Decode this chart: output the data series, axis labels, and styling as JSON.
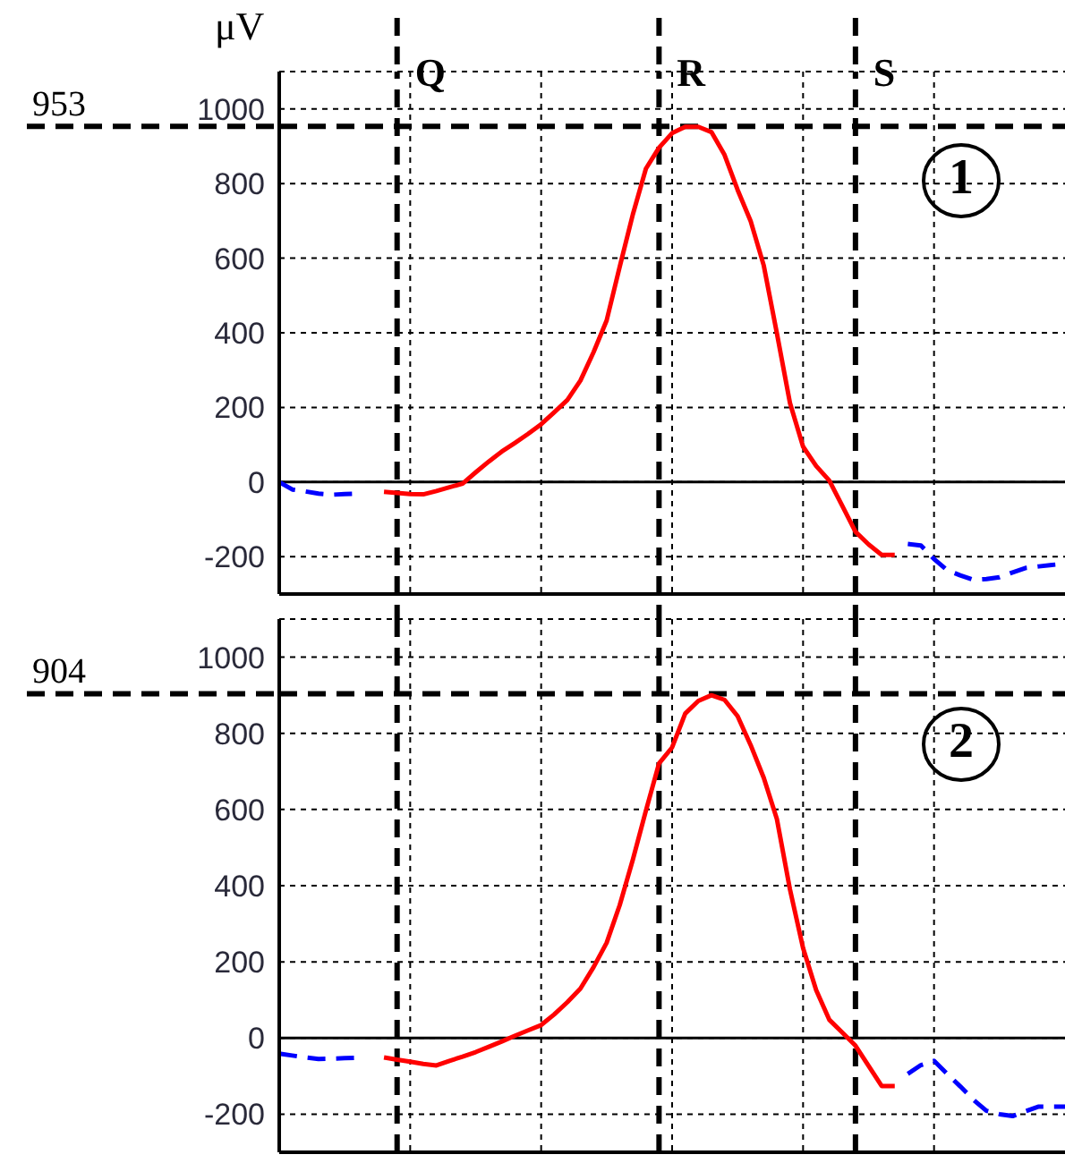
{
  "chart_data": [
    {
      "type": "line",
      "ylabel": "μV",
      "annotations": [
        "Q",
        "R",
        "S",
        "1"
      ],
      "categories": [
        null,
        null,
        null,
        null,
        null,
        null,
        null,
        null,
        null,
        null,
        null,
        null,
        null,
        null,
        null,
        null,
        null,
        null,
        null,
        null,
        null,
        null,
        null,
        null,
        null,
        null,
        null,
        null,
        null,
        null,
        null,
        null,
        null,
        null,
        null,
        null,
        null,
        null,
        null,
        null,
        null,
        null,
        null,
        null,
        null,
        null,
        null,
        null,
        null,
        null,
        null,
        null,
        null,
        null,
        null,
        null,
        null,
        null,
        null,
        null,
        null
      ],
      "ylim": [
        -300,
        1100
      ],
      "yticks": [
        -200,
        0,
        200,
        400,
        600,
        800,
        1000
      ],
      "tick_labels": "y",
      "grid": true,
      "series": [
        {
          "color": "#0000ff",
          "line_style": "dashed",
          "values": [
            0,
            -20,
            -25,
            -31,
            -34,
            -32,
            -31,
            null,
            null,
            null,
            null,
            null,
            null,
            null,
            null,
            null,
            null,
            null,
            null,
            null,
            null,
            null,
            null,
            null,
            null,
            null,
            null,
            null,
            null,
            null,
            null,
            null,
            null,
            null,
            null,
            null,
            null,
            null,
            null,
            null,
            null,
            null,
            null,
            null,
            null,
            null,
            null,
            null,
            null,
            null,
            null,
            null,
            null,
            null,
            null,
            null,
            null,
            null,
            null,
            null,
            null
          ]
        },
        {
          "color": "#ff0000",
          "line_style": "solid",
          "values": [
            null,
            null,
            null,
            null,
            null,
            null,
            null,
            null,
            -26,
            -29,
            -32,
            -33,
            -24,
            -14,
            -4,
            26,
            55,
            82,
            105,
            129,
            155,
            187,
            220,
            272,
            348,
            433,
            577,
            717,
            840,
            896,
            935,
            952,
            952,
            938,
            877,
            783,
            699,
            580,
            399,
            212,
            95,
            43,
            4,
            -64,
            -133,
            -167,
            -195,
            -195,
            null,
            null,
            null,
            null,
            null,
            null,
            null,
            null,
            null,
            null,
            null,
            null,
            null
          ]
        },
        {
          "color": "#0000ff",
          "line_style": "dashed",
          "values": [
            null,
            null,
            null,
            null,
            null,
            null,
            null,
            null,
            null,
            null,
            null,
            null,
            null,
            null,
            null,
            null,
            null,
            null,
            null,
            null,
            null,
            null,
            null,
            null,
            null,
            null,
            null,
            null,
            null,
            null,
            null,
            null,
            null,
            null,
            null,
            null,
            null,
            null,
            null,
            null,
            null,
            null,
            null,
            null,
            null,
            null,
            null,
            null,
            -166,
            -170,
            -206,
            -236,
            -250,
            -262,
            -260,
            -255,
            -242,
            -230,
            -226,
            -222,
            -219
          ]
        }
      ],
      "ref_lines": [
        {
          "axis": "y",
          "value": 0,
          "color": "#000000",
          "line_style": "solid"
        },
        {
          "axis": "y",
          "value": 953,
          "label": "953",
          "color": "#000000",
          "line_style": "dashed"
        }
      ]
    },
    {
      "type": "line",
      "annotations": [
        "2"
      ],
      "categories": [
        null,
        null,
        null,
        null,
        null,
        null,
        null,
        null,
        null,
        null,
        null,
        null,
        null,
        null,
        null,
        null,
        null,
        null,
        null,
        null,
        null,
        null,
        null,
        null,
        null,
        null,
        null,
        null,
        null,
        null,
        null,
        null,
        null,
        null,
        null,
        null,
        null,
        null,
        null,
        null,
        null,
        null,
        null,
        null,
        null,
        null,
        null,
        null,
        null,
        null,
        null,
        null,
        null,
        null,
        null,
        null,
        null,
        null,
        null,
        null,
        null
      ],
      "ylim": [
        -300,
        1100
      ],
      "yticks": [
        -200,
        0,
        200,
        400,
        600,
        800,
        1000
      ],
      "tick_labels": "y",
      "grid": true,
      "series": [
        {
          "color": "#0000ff",
          "line_style": "dashed",
          "values": [
            -41,
            -46,
            -51,
            -55,
            -54,
            -53,
            -52,
            null,
            null,
            null,
            null,
            null,
            null,
            null,
            null,
            null,
            null,
            null,
            null,
            null,
            null,
            null,
            null,
            null,
            null,
            null,
            null,
            null,
            null,
            null,
            null,
            null,
            null,
            null,
            null,
            null,
            null,
            null,
            null,
            null,
            null,
            null,
            null,
            null,
            null,
            null,
            null,
            null,
            null,
            null,
            null,
            null,
            null,
            null,
            null,
            null,
            null,
            null,
            null,
            null,
            null
          ]
        },
        {
          "color": "#ff0000",
          "line_style": "solid",
          "values": [
            null,
            null,
            null,
            null,
            null,
            null,
            null,
            null,
            -51,
            -57,
            -62,
            -68,
            -72,
            -60,
            -49,
            -37,
            -23,
            -9,
            6,
            20,
            34,
            62,
            94,
            130,
            186,
            250,
            349,
            468,
            597,
            721,
            763,
            852,
            885,
            900,
            888,
            845,
            769,
            683,
            575,
            390,
            236,
            126,
            48,
            14,
            -20,
            -73,
            -126,
            -126,
            null,
            null,
            null,
            null,
            null,
            null,
            null,
            null,
            null,
            null,
            null,
            null,
            null
          ]
        },
        {
          "color": "#0000ff",
          "line_style": "dashed",
          "values": [
            null,
            null,
            null,
            null,
            null,
            null,
            null,
            null,
            null,
            null,
            null,
            null,
            null,
            null,
            null,
            null,
            null,
            null,
            null,
            null,
            null,
            null,
            null,
            null,
            null,
            null,
            null,
            null,
            null,
            null,
            null,
            null,
            null,
            null,
            null,
            null,
            null,
            null,
            null,
            null,
            null,
            null,
            null,
            null,
            null,
            null,
            null,
            null,
            -94,
            -71,
            -60,
            -94,
            -127,
            -162,
            -191,
            -200,
            -205,
            -192,
            -180,
            -180,
            -180
          ]
        }
      ],
      "ref_lines": [
        {
          "axis": "y",
          "value": 0,
          "color": "#000000",
          "line_style": "solid"
        },
        {
          "axis": "y",
          "value": 904,
          "label": "904",
          "color": "#000000",
          "line_style": "dashed"
        }
      ]
    }
  ]
}
